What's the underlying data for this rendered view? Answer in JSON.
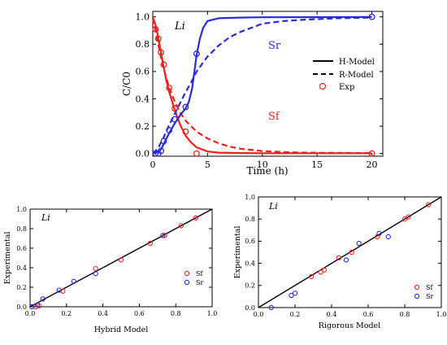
{
  "colors": {
    "sf": "#e8231f",
    "sr": "#2a2ad6",
    "axis": "#000000"
  },
  "chart_data": [
    {
      "id": "top",
      "type": "line",
      "annotation": "Li",
      "xlabel": "Time (h)",
      "ylabel": "C/C0",
      "xlim": [
        0,
        21
      ],
      "ylim": [
        -0.02,
        1.04
      ],
      "xticks": [
        0,
        5,
        10,
        15,
        20
      ],
      "yticks": [
        0.0,
        0.2,
        0.4,
        0.6,
        0.8,
        1.0
      ],
      "ytick_labels": [
        "0.0",
        "0.2",
        "0.4",
        "0.6",
        "0.8",
        "1.0"
      ],
      "series_labels": {
        "sr": "Sr",
        "sf": "Sf"
      },
      "legend": {
        "placement": "right",
        "entries": [
          "H-Model",
          "R-Model",
          "Exp"
        ]
      },
      "series": [
        {
          "key": "sf_h",
          "color": "sf",
          "dash": false,
          "x": [
            0,
            0.25,
            0.5,
            0.75,
            1,
            1.25,
            1.5,
            2,
            2.5,
            3,
            3.5,
            4,
            5,
            6,
            8,
            10,
            15,
            20
          ],
          "y": [
            1.0,
            0.94,
            0.85,
            0.74,
            0.63,
            0.53,
            0.45,
            0.32,
            0.21,
            0.13,
            0.08,
            0.045,
            0.015,
            0.006,
            0.003,
            0.002,
            0.002,
            0.002
          ]
        },
        {
          "key": "sf_r",
          "color": "sf",
          "dash": true,
          "x": [
            0,
            0.25,
            0.5,
            0.75,
            1,
            1.5,
            2,
            2.5,
            3,
            3.5,
            4,
            5,
            6,
            7,
            8,
            10,
            12,
            15,
            20
          ],
          "y": [
            0.99,
            0.9,
            0.8,
            0.7,
            0.62,
            0.48,
            0.38,
            0.3,
            0.24,
            0.2,
            0.16,
            0.11,
            0.075,
            0.05,
            0.035,
            0.018,
            0.01,
            0.005,
            0.003
          ]
        },
        {
          "key": "sr_h",
          "color": "sr",
          "dash": false,
          "x": [
            0,
            0.5,
            0.75,
            1,
            1.5,
            2,
            2.5,
            3,
            3.3,
            3.6,
            3.8,
            4,
            4.3,
            4.6,
            5,
            6,
            8,
            10,
            15,
            20
          ],
          "y": [
            0.0,
            0.01,
            0.03,
            0.07,
            0.15,
            0.22,
            0.28,
            0.33,
            0.38,
            0.48,
            0.6,
            0.72,
            0.84,
            0.92,
            0.97,
            0.99,
            0.995,
            0.997,
            0.998,
            0.999
          ]
        },
        {
          "key": "sr_r",
          "color": "sr",
          "dash": true,
          "x": [
            0,
            0.5,
            1,
            1.5,
            2,
            2.5,
            3,
            3.5,
            4,
            5,
            6,
            7,
            8,
            9,
            10,
            12,
            14,
            17,
            20
          ],
          "y": [
            0.0,
            0.04,
            0.12,
            0.21,
            0.29,
            0.37,
            0.45,
            0.52,
            0.6,
            0.71,
            0.79,
            0.85,
            0.89,
            0.92,
            0.95,
            0.97,
            0.98,
            0.99,
            0.995
          ]
        }
      ],
      "points": [
        {
          "series": "Sf",
          "color": "sf",
          "x": [
            0.25,
            0.5,
            0.75,
            1.0,
            1.5,
            2.0,
            3.0,
            4.0,
            20.0
          ],
          "y": [
            0.91,
            0.84,
            0.74,
            0.65,
            0.48,
            0.33,
            0.16,
            0.0,
            0.0
          ]
        },
        {
          "series": "Sr",
          "color": "sr",
          "x": [
            0.25,
            0.5,
            0.75,
            1.0,
            1.5,
            2.0,
            3.0,
            4.0,
            20.0
          ],
          "y": [
            0.0,
            0.0,
            0.02,
            0.09,
            0.17,
            0.25,
            0.34,
            0.73,
            1.0
          ]
        }
      ]
    },
    {
      "id": "bottom-left",
      "type": "scatter",
      "annotation": "Li",
      "xlabel": "Hybrid Model",
      "ylabel": "Experimental",
      "xlim": [
        0,
        1
      ],
      "ylim": [
        0,
        1
      ],
      "xticks": [
        0.0,
        0.2,
        0.4,
        0.6,
        0.8,
        1.0
      ],
      "yticks": [
        0.0,
        0.2,
        0.4,
        0.6,
        0.8,
        1.0
      ],
      "tick_labels": [
        "0.0",
        "0.2",
        "0.4",
        "0.6",
        "0.8",
        "1.0"
      ],
      "legend": {
        "placement": "bottom-right",
        "entries": [
          "Sf",
          "Sr"
        ]
      },
      "diagonal": true,
      "series": [
        {
          "name": "Sf",
          "color": "sf",
          "x": [
            0.03,
            0.05,
            0.18,
            0.36,
            0.5,
            0.66,
            0.74,
            0.83,
            0.91
          ],
          "y": [
            0.0,
            0.01,
            0.16,
            0.39,
            0.48,
            0.65,
            0.73,
            0.83,
            0.91
          ]
        },
        {
          "name": "Sr",
          "color": "sr",
          "x": [
            0.01,
            0.04,
            0.07,
            0.16,
            0.24,
            0.36,
            0.73
          ],
          "y": [
            0.0,
            0.02,
            0.08,
            0.17,
            0.26,
            0.34,
            0.73
          ]
        }
      ]
    },
    {
      "id": "bottom-right",
      "type": "scatter",
      "annotation": "Li",
      "xlabel": "Rigorous Model",
      "ylabel": "Experimental",
      "xlim": [
        0,
        1
      ],
      "ylim": [
        0,
        1
      ],
      "xticks": [
        0.0,
        0.2,
        0.4,
        0.6,
        0.8,
        1.0
      ],
      "yticks": [
        0.0,
        0.2,
        0.4,
        0.6,
        0.8,
        1.0
      ],
      "tick_labels": [
        "0.0",
        "0.2",
        "0.4",
        "0.6",
        "0.8",
        "1.0"
      ],
      "legend": {
        "placement": "bottom-right",
        "entries": [
          "Sf",
          "Sr"
        ]
      },
      "diagonal": true,
      "series": [
        {
          "name": "Sf",
          "color": "sf",
          "x": [
            0.29,
            0.34,
            0.36,
            0.44,
            0.51,
            0.65,
            0.8,
            0.82,
            0.93
          ],
          "y": [
            0.28,
            0.32,
            0.34,
            0.45,
            0.5,
            0.64,
            0.8,
            0.82,
            0.93
          ]
        },
        {
          "name": "Sr",
          "color": "sr",
          "x": [
            0.07,
            0.18,
            0.2,
            0.48,
            0.55,
            0.66,
            0.71
          ],
          "y": [
            0.0,
            0.11,
            0.13,
            0.43,
            0.58,
            0.67,
            0.64
          ]
        }
      ]
    }
  ]
}
